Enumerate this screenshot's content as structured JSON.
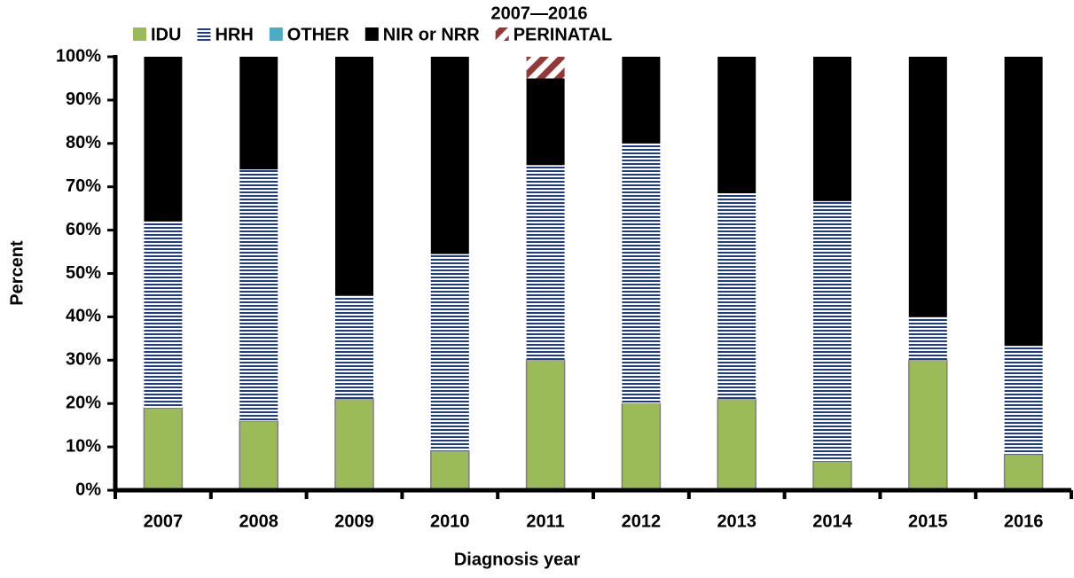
{
  "chart_data": {
    "type": "stacked-bar",
    "title": "2007—2016",
    "x_label": "Diagnosis year",
    "y_label": "Percent",
    "categories": [
      "2007",
      "2008",
      "2009",
      "2010",
      "2011",
      "2012",
      "2013",
      "2014",
      "2015",
      "2016"
    ],
    "series": [
      {
        "name": "IDU",
        "color": "#9bbb59",
        "values": [
          19,
          16,
          21,
          9.1,
          30,
          20,
          21,
          6.7,
          30,
          8.3
        ]
      },
      {
        "name": "HRH",
        "color": "#1f3c88",
        "pattern": "horizontal-lines",
        "values": [
          43,
          58,
          24,
          45.4,
          45,
          60,
          47.5,
          60,
          10,
          25
        ]
      },
      {
        "name": "OTHER",
        "color": "#4bacc6",
        "values": [
          0,
          0,
          0,
          0,
          0,
          0,
          0,
          0,
          0,
          0
        ]
      },
      {
        "name": "NIR or NRR",
        "color": "#000000",
        "values": [
          38,
          26,
          55,
          45.5,
          20,
          20,
          31.5,
          33.3,
          60,
          66.7
        ]
      },
      {
        "name": "PERINATAL",
        "color": "#953735",
        "pattern": "diagonal-lines",
        "values": [
          0,
          0,
          0,
          0,
          5,
          0,
          0,
          0,
          0,
          0
        ]
      }
    ],
    "ylim": [
      0,
      100
    ],
    "yticks": [
      {
        "value": 0,
        "label": "0%"
      },
      {
        "value": 10,
        "label": "10%"
      },
      {
        "value": 20,
        "label": "20%"
      },
      {
        "value": 30,
        "label": "30%"
      },
      {
        "value": 40,
        "label": "40%"
      },
      {
        "value": 50,
        "label": "50%"
      },
      {
        "value": 60,
        "label": "60%"
      },
      {
        "value": 70,
        "label": "70%"
      },
      {
        "value": 80,
        "label": "80%"
      },
      {
        "value": 90,
        "label": "90%"
      },
      {
        "value": 100,
        "label": "100%"
      }
    ],
    "legend": "top",
    "grid": false
  }
}
